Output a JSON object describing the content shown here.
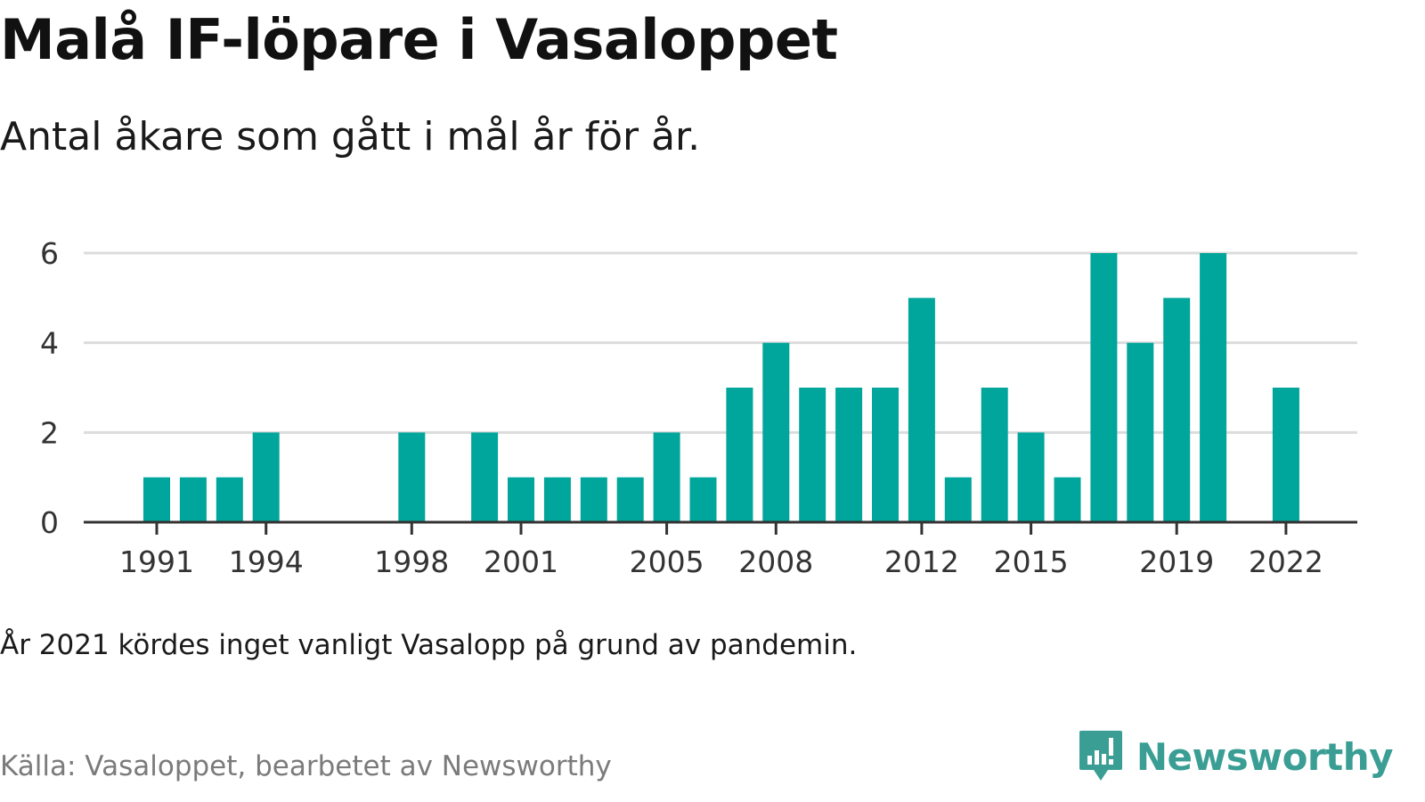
{
  "title": "Malå IF-löpare i Vasaloppet",
  "subtitle": "Antal åkare som gått i mål år för år.",
  "note": "År 2021 kördes inget vanligt Vasalopp på grund av pandemin.",
  "source": "Källa: Vasaloppet, bearbetet av Newsworthy",
  "brand": {
    "name": "Newsworthy",
    "icon": "newsworthy-logo-icon",
    "color": "#3a9e94"
  },
  "colors": {
    "bar": "#00a59b",
    "grid": "#dcdcdc",
    "axis": "#333333"
  },
  "chart_data": {
    "type": "bar",
    "x": [
      1991,
      1992,
      1993,
      1994,
      1995,
      1996,
      1997,
      1998,
      1999,
      2000,
      2001,
      2002,
      2003,
      2004,
      2005,
      2006,
      2007,
      2008,
      2009,
      2010,
      2011,
      2012,
      2013,
      2014,
      2015,
      2016,
      2017,
      2018,
      2019,
      2020,
      2021,
      2022
    ],
    "values": [
      1,
      1,
      1,
      2,
      0,
      0,
      0,
      2,
      0,
      2,
      1,
      1,
      1,
      1,
      2,
      1,
      3,
      4,
      3,
      3,
      3,
      5,
      1,
      3,
      2,
      1,
      6,
      4,
      5,
      6,
      0,
      3
    ],
    "x_tick_labels": [
      "1991",
      "1994",
      "1998",
      "2001",
      "2005",
      "2008",
      "2012",
      "2015",
      "2019",
      "2022"
    ],
    "y_ticks": [
      0,
      2,
      4,
      6
    ],
    "ylim": [
      0,
      6
    ],
    "xlabel": "",
    "ylabel": "",
    "grid": true,
    "legend": "none"
  }
}
